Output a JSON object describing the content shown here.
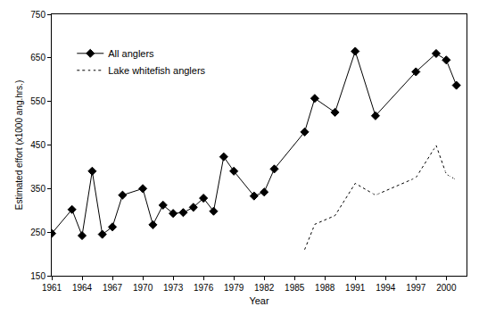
{
  "chart_data": {
    "type": "line",
    "x_label": "Year",
    "y_label": "Estimated effort (x1000 ang.hrs.)",
    "xlim": [
      1961,
      2002
    ],
    "xticks": [
      1961,
      1964,
      1967,
      1970,
      1973,
      1976,
      1979,
      1982,
      1985,
      1988,
      1991,
      1994,
      1997,
      2000
    ],
    "ylim": [
      150,
      750
    ],
    "yticks": [
      150,
      250,
      350,
      450,
      550,
      650,
      750
    ],
    "grid": false,
    "legend": "upper left",
    "series": [
      {
        "name": "All anglers",
        "color": "#000000",
        "marker": "diamond",
        "line_style": "solid",
        "x": [
          1961,
          1963,
          1964,
          1965,
          1966,
          1967,
          1968,
          1970,
          1971,
          1972,
          1973,
          1974,
          1975,
          1976,
          1977,
          1978,
          1979,
          1981,
          1982,
          1983,
          1986,
          1987,
          1989,
          1991,
          1993,
          1997,
          1999,
          2000,
          2001
        ],
        "values": [
          247,
          302,
          242,
          390,
          245,
          262,
          335,
          350,
          267,
          312,
          293,
          295,
          307,
          328,
          298,
          423,
          390,
          333,
          342,
          395,
          480,
          557,
          525,
          665,
          517,
          618,
          660,
          645,
          587
        ]
      },
      {
        "name": "Lake whitefish anglers",
        "color": "#000000",
        "marker": "square-open",
        "line_style": "dot",
        "x": [
          1986,
          1987,
          1989,
          1991,
          1993,
          1997,
          1999,
          2000,
          2001
        ],
        "values": [
          210,
          268,
          288,
          362,
          335,
          375,
          449,
          383,
          370
        ]
      }
    ]
  }
}
